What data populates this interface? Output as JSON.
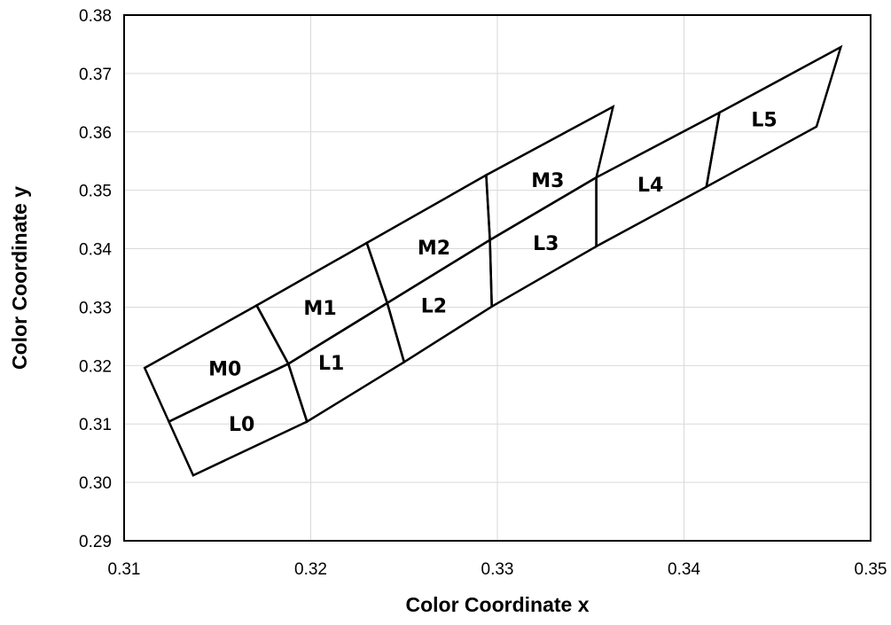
{
  "chart_data": {
    "type": "line",
    "xlabel": "Color Coordinate x",
    "ylabel": "Color Coordinate y",
    "xlim": [
      0.31,
      0.35
    ],
    "ylim": [
      0.29,
      0.38
    ],
    "x_ticks": [
      "0.31",
      "0.32",
      "0.33",
      "0.34",
      "0.35"
    ],
    "y_ticks": [
      "0.29",
      "0.30",
      "0.31",
      "0.32",
      "0.33",
      "0.34",
      "0.35",
      "0.36",
      "0.37",
      "0.38"
    ],
    "grid": true,
    "legend": "none",
    "line_color": "#000000",
    "grid_color": "#d9d9d9",
    "bins": [
      {
        "label": "M0",
        "corners": [
          [
            0.3111,
            0.3196
          ],
          [
            0.3171,
            0.3303
          ],
          [
            0.3188,
            0.3203
          ],
          [
            0.3124,
            0.3104
          ]
        ],
        "label_at": [
          0.3154,
          0.3195
        ]
      },
      {
        "label": "L0",
        "corners": [
          [
            0.3124,
            0.3104
          ],
          [
            0.3188,
            0.3203
          ],
          [
            0.3198,
            0.3104
          ],
          [
            0.3137,
            0.3012
          ]
        ],
        "label_at": [
          0.3163,
          0.31
        ]
      },
      {
        "label": "M1",
        "corners": [
          [
            0.3171,
            0.3303
          ],
          [
            0.323,
            0.341
          ],
          [
            0.3241,
            0.3307
          ],
          [
            0.3188,
            0.3203
          ]
        ],
        "label_at": [
          0.3205,
          0.3299
        ]
      },
      {
        "label": "L1",
        "corners": [
          [
            0.3188,
            0.3203
          ],
          [
            0.3241,
            0.3307
          ],
          [
            0.325,
            0.3206
          ],
          [
            0.3198,
            0.3104
          ]
        ],
        "label_at": [
          0.3211,
          0.3205
        ]
      },
      {
        "label": "M2",
        "corners": [
          [
            0.323,
            0.341
          ],
          [
            0.3294,
            0.3526
          ],
          [
            0.3296,
            0.3415
          ],
          [
            0.3241,
            0.3307
          ]
        ],
        "label_at": [
          0.3266,
          0.3402
        ]
      },
      {
        "label": "L2",
        "corners": [
          [
            0.3241,
            0.3307
          ],
          [
            0.3296,
            0.3415
          ],
          [
            0.3297,
            0.3301
          ],
          [
            0.325,
            0.3206
          ]
        ],
        "label_at": [
          0.3266,
          0.3303
        ]
      },
      {
        "label": "M3",
        "corners": [
          [
            0.3294,
            0.3526
          ],
          [
            0.3362,
            0.3643
          ],
          [
            0.3353,
            0.3522
          ],
          [
            0.3296,
            0.3415
          ]
        ],
        "label_at": [
          0.3327,
          0.3518
        ]
      },
      {
        "label": "L3",
        "corners": [
          [
            0.3296,
            0.3415
          ],
          [
            0.3353,
            0.3522
          ],
          [
            0.3353,
            0.3404
          ],
          [
            0.3297,
            0.3301
          ]
        ],
        "label_at": [
          0.3326,
          0.341
        ]
      },
      {
        "label": "L4",
        "corners": [
          [
            0.3353,
            0.3522
          ],
          [
            0.3419,
            0.3633
          ],
          [
            0.3412,
            0.3506
          ],
          [
            0.3353,
            0.3404
          ]
        ],
        "label_at": [
          0.3382,
          0.351
        ]
      },
      {
        "label": "L5",
        "corners": [
          [
            0.3419,
            0.3633
          ],
          [
            0.3484,
            0.3745
          ],
          [
            0.3471,
            0.3609
          ],
          [
            0.3412,
            0.3506
          ]
        ],
        "label_at": [
          0.3443,
          0.3622
        ]
      }
    ]
  }
}
